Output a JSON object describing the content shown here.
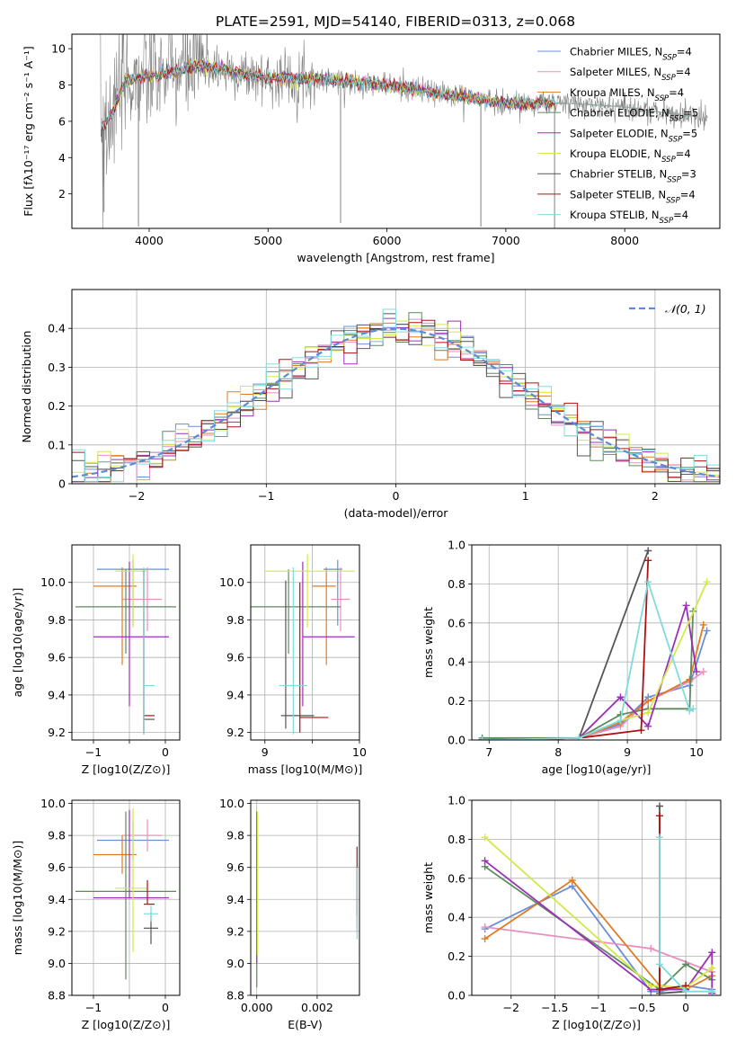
{
  "title": "PLATE=2591, MJD=54140, FIBERID=0313, z=0.068",
  "colors": {
    "Chabrier MILES": "#6a8fd8",
    "Salpeter MILES": "#e88fc0",
    "Kroupa MILES": "#e07b24",
    "Chabrier ELODIE": "#5f8a5f",
    "Salpeter ELODIE": "#9b30b8",
    "Kroupa ELODIE": "#d4e84a",
    "Chabrier STELIB": "#555555",
    "Salpeter STELIB": "#b01010",
    "Kroupa STELIB": "#80dcdc",
    "data": "#808080"
  },
  "chart_data": [
    {
      "type": "line",
      "id": "spectrum",
      "xlabel": "wavelength [Angstrom, rest frame]",
      "ylabel": "Flux [fλ10⁻¹⁷ erg cm⁻² s⁻¹ A⁻¹]",
      "xlim": [
        3350,
        8800
      ],
      "ylim": [
        0.1,
        10.8
      ],
      "xticks": [
        4000,
        5000,
        6000,
        7000,
        8000
      ],
      "yticks": [
        2,
        4,
        6,
        8,
        10
      ],
      "legend": "top-right",
      "legend_entries": [
        {
          "model": "Chabrier MILES",
          "base": "Chabrier MILES, N",
          "sub": "SSP",
          "tail": "=4"
        },
        {
          "model": "Salpeter MILES",
          "base": "Salpeter MILES, N",
          "sub": "SSP",
          "tail": "=4"
        },
        {
          "model": "Kroupa MILES",
          "base": "Kroupa MILES, N",
          "sub": "SSP",
          "tail": "=4"
        },
        {
          "model": "Chabrier ELODIE",
          "base": "Chabrier ELODIE, N",
          "sub": "SSP",
          "tail": "=5"
        },
        {
          "model": "Salpeter ELODIE",
          "base": "Salpeter ELODIE, N",
          "sub": "SSP",
          "tail": "=5"
        },
        {
          "model": "Kroupa ELODIE",
          "base": "Kroupa ELODIE, N",
          "sub": "SSP",
          "tail": "=4"
        },
        {
          "model": "Chabrier STELIB",
          "base": "Chabrier STELIB, N",
          "sub": "SSP",
          "tail": "=3"
        },
        {
          "model": "Salpeter STELIB",
          "base": "Salpeter STELIB, N",
          "sub": "SSP",
          "tail": "=4"
        },
        {
          "model": "Kroupa STELIB",
          "base": "Kroupa STELIB, N",
          "sub": "SSP",
          "tail": "=4"
        }
      ],
      "continuum": {
        "wavelength": [
          3600,
          3700,
          3800,
          3900,
          4000,
          4200,
          4400,
          4600,
          4800,
          5000,
          5500,
          6000,
          6500,
          7000,
          7500,
          8000,
          8500
        ],
        "flux": [
          5.5,
          6.6,
          8.2,
          8.4,
          8.5,
          8.7,
          9.1,
          8.9,
          8.6,
          8.4,
          8.3,
          8.0,
          7.5,
          7.0,
          7.0,
          6.8,
          6.3
        ]
      },
      "dips": [
        [
          3620,
          1.0
        ],
        [
          3910,
          0.2
        ],
        [
          5610,
          0.4
        ],
        [
          6790,
          0.2
        ],
        [
          7410,
          0.1
        ]
      ]
    },
    {
      "type": "histogram",
      "id": "residuals",
      "xlabel": "(data-model)/error",
      "ylabel": "Normed distribution",
      "xlim": [
        -2.5,
        2.5
      ],
      "ylim": [
        0,
        0.5
      ],
      "xticks": [
        -2,
        -1,
        0,
        1,
        2
      ],
      "yticks": [
        0,
        0.1,
        0.2,
        0.3,
        0.4
      ],
      "legend": "top-right",
      "reference_curve": {
        "name": "N(0, 1)",
        "mean": 0,
        "sigma": 1
      },
      "bin_width": 0.1
    },
    {
      "type": "scatter",
      "id": "age-vs-z",
      "xlabel": "Z [log10(Z/Z⊙)]",
      "ylabel": "age [log10(age/yr)]",
      "xlim": [
        -1.3,
        0.2
      ],
      "ylim": [
        9.16,
        10.2
      ],
      "xticks": [
        -1,
        -0.5,
        0
      ],
      "xtick_labels": [
        "−1",
        "",
        "0"
      ],
      "yticks": [
        9.2,
        9.4,
        9.6,
        9.8,
        10.0
      ],
      "points": [
        {
          "model": "Chabrier MILES",
          "x": -0.45,
          "y": 10.07,
          "xerr": [
            0.5,
            0.5
          ],
          "yerr": [
            0.3,
            0.05
          ]
        },
        {
          "model": "Salpeter MILES",
          "x": -0.25,
          "y": 9.91,
          "xerr": [
            0.35,
            0.2
          ],
          "yerr": [
            0.17,
            0.17
          ]
        },
        {
          "model": "Kroupa MILES",
          "x": -0.6,
          "y": 9.98,
          "xerr": [
            0.4,
            0.2
          ],
          "yerr": [
            0.42,
            0.1
          ]
        },
        {
          "model": "Chabrier ELODIE",
          "x": -0.55,
          "y": 9.87,
          "xerr": [
            0.7,
            0.7
          ],
          "yerr": [
            0.25,
            0.2
          ]
        },
        {
          "model": "Salpeter ELODIE",
          "x": -0.5,
          "y": 9.71,
          "xerr": [
            0.5,
            0.55
          ],
          "yerr": [
            0.37,
            0.4
          ]
        },
        {
          "model": "Kroupa ELODIE",
          "x": -0.45,
          "y": 10.06,
          "xerr": [
            0.25,
            0.2
          ],
          "yerr": [
            0.3,
            0.09
          ]
        },
        {
          "model": "Chabrier STELIB",
          "x": -0.3,
          "y": 9.27,
          "xerr": [
            0.0,
            0.15
          ],
          "yerr": [
            0.07,
            0.8
          ]
        },
        {
          "model": "Salpeter STELIB",
          "x": -0.3,
          "y": 9.29,
          "xerr": [
            0.0,
            0.15
          ],
          "yerr": [
            0.1,
            0.78
          ]
        },
        {
          "model": "Kroupa STELIB",
          "x": -0.3,
          "y": 9.45,
          "xerr": [
            0.0,
            0.15
          ],
          "yerr": [
            0.26,
            0.63
          ]
        }
      ]
    },
    {
      "type": "scatter",
      "id": "age-vs-mass",
      "xlabel": "mass [log10(M/M⊙)]",
      "ylabel": "",
      "xlim": [
        8.85,
        10.0
      ],
      "ylim": [
        9.16,
        10.2
      ],
      "xticks": [
        9,
        9.5,
        10
      ],
      "xtick_labels": [
        "9",
        "",
        "10"
      ],
      "yticks": [
        9.2,
        9.4,
        9.6,
        9.8,
        10.0
      ],
      "points": [
        {
          "model": "Chabrier MILES",
          "x": 9.77,
          "y": 10.07,
          "xerr": [
            0.15,
            0.05
          ],
          "yerr": [
            0.3,
            0.05
          ]
        },
        {
          "model": "Salpeter MILES",
          "x": 9.8,
          "y": 9.91,
          "xerr": [
            0.1,
            0.1
          ],
          "yerr": [
            0.17,
            0.17
          ]
        },
        {
          "model": "Kroupa MILES",
          "x": 9.65,
          "y": 9.98,
          "xerr": [
            0.15,
            0.1
          ],
          "yerr": [
            0.42,
            0.1
          ]
        },
        {
          "model": "Chabrier ELODIE",
          "x": 9.25,
          "y": 9.87,
          "xerr": [
            0.4,
            0.55
          ],
          "yerr": [
            0.25,
            0.2
          ]
        },
        {
          "model": "Salpeter ELODIE",
          "x": 9.4,
          "y": 9.71,
          "xerr": [
            0.0,
            0.55
          ],
          "yerr": [
            0.37,
            0.4
          ]
        },
        {
          "model": "Kroupa ELODIE",
          "x": 9.45,
          "y": 10.06,
          "xerr": [
            0.45,
            0.5
          ],
          "yerr": [
            0.3,
            0.09
          ]
        },
        {
          "model": "Chabrier STELIB",
          "x": 9.22,
          "y": 9.29,
          "xerr": [
            0.05,
            0.3
          ],
          "yerr": [
            0.07,
            0.72
          ]
        },
        {
          "model": "Salpeter STELIB",
          "x": 9.37,
          "y": 9.28,
          "xerr": [
            0.0,
            0.3
          ],
          "yerr": [
            0.08,
            0.72
          ]
        },
        {
          "model": "Kroupa STELIB",
          "x": 9.3,
          "y": 9.45,
          "xerr": [
            0.15,
            0.15
          ],
          "yerr": [
            0.26,
            0.63
          ]
        }
      ]
    },
    {
      "type": "line",
      "id": "weight-vs-age",
      "xlabel": "age  [log10(age/yr)]",
      "ylabel": "mass weight",
      "xlim": [
        6.75,
        10.35
      ],
      "ylim": [
        0,
        1.0
      ],
      "xticks": [
        7,
        8,
        9,
        10
      ],
      "yticks": [
        0,
        0.2,
        0.4,
        0.6,
        0.8,
        1.0
      ],
      "series": [
        {
          "model": "Chabrier MILES",
          "x": [
            6.9,
            8.3,
            8.9,
            9.3,
            9.9,
            10.15
          ],
          "y": [
            0.0,
            0.01,
            0.08,
            0.22,
            0.28,
            0.56
          ]
        },
        {
          "model": "Salpeter MILES",
          "x": [
            6.9,
            8.3,
            8.9,
            9.3,
            9.9,
            10.1
          ],
          "y": [
            0.0,
            0.01,
            0.07,
            0.2,
            0.3,
            0.35
          ]
        },
        {
          "model": "Kroupa MILES",
          "x": [
            6.9,
            8.3,
            8.9,
            9.3,
            9.9,
            10.1
          ],
          "y": [
            0.0,
            0.01,
            0.09,
            0.2,
            0.31,
            0.59
          ]
        },
        {
          "model": "Chabrier ELODIE",
          "x": [
            6.9,
            8.3,
            8.9,
            9.3,
            9.9,
            9.95
          ],
          "y": [
            0.01,
            0.01,
            0.13,
            0.16,
            0.16,
            0.66
          ]
        },
        {
          "model": "Salpeter ELODIE",
          "x": [
            6.9,
            8.3,
            8.9,
            9.3,
            9.85,
            10.0
          ],
          "y": [
            0.0,
            0.01,
            0.22,
            0.07,
            0.69,
            0.35
          ]
        },
        {
          "model": "Kroupa ELODIE",
          "x": [
            6.9,
            8.3,
            8.9,
            9.3,
            10.15
          ],
          "y": [
            0.0,
            0.01,
            0.1,
            0.14,
            0.81
          ]
        },
        {
          "model": "Chabrier STELIB",
          "x": [
            6.9,
            8.3,
            9.3
          ],
          "y": [
            0.0,
            0.01,
            0.97
          ]
        },
        {
          "model": "Salpeter STELIB",
          "x": [
            6.9,
            8.3,
            9.2,
            9.3
          ],
          "y": [
            0.0,
            0.01,
            0.05,
            0.92
          ]
        },
        {
          "model": "Kroupa STELIB",
          "x": [
            6.9,
            8.3,
            8.9,
            9.3,
            9.9,
            9.95
          ],
          "y": [
            0.0,
            0.01,
            0.1,
            0.81,
            0.15,
            0.16
          ]
        }
      ]
    },
    {
      "type": "scatter",
      "id": "mass-vs-z",
      "xlabel": "Z [log10(Z/Z⊙)]",
      "ylabel": "mass [log10(M/M⊙)]",
      "xlim": [
        -1.3,
        0.2
      ],
      "ylim": [
        8.8,
        10.02
      ],
      "xticks": [
        -1,
        -0.5,
        0
      ],
      "xtick_labels": [
        "−1",
        "",
        "0"
      ],
      "yticks": [
        8.8,
        9.0,
        9.2,
        9.4,
        9.6,
        9.8,
        10.0
      ],
      "points": [
        {
          "model": "Chabrier MILES",
          "x": -0.45,
          "y": 9.77,
          "xerr": [
            0.5,
            0.5
          ],
          "yerr": [
            0.12,
            0.12
          ]
        },
        {
          "model": "Salpeter MILES",
          "x": -0.25,
          "y": 9.8,
          "xerr": [
            0.35,
            0.2
          ],
          "yerr": [
            0.1,
            0.1
          ]
        },
        {
          "model": "Kroupa MILES",
          "x": -0.6,
          "y": 9.68,
          "xerr": [
            0.4,
            0.2
          ],
          "yerr": [
            0.12,
            0.12
          ]
        },
        {
          "model": "Chabrier ELODIE",
          "x": -0.55,
          "y": 9.45,
          "xerr": [
            0.7,
            0.7
          ],
          "yerr": [
            0.55,
            0.5
          ]
        },
        {
          "model": "Salpeter ELODIE",
          "x": -0.5,
          "y": 9.41,
          "xerr": [
            0.5,
            0.55
          ],
          "yerr": [
            0.0,
            0.55
          ]
        },
        {
          "model": "Kroupa ELODIE",
          "x": -0.45,
          "y": 9.47,
          "xerr": [
            0.25,
            0.2
          ],
          "yerr": [
            0.4,
            0.5
          ]
        },
        {
          "model": "Chabrier STELIB",
          "x": -0.2,
          "y": 9.22,
          "xerr": [
            0.1,
            0.1
          ],
          "yerr": [
            0.1,
            0.1
          ]
        },
        {
          "model": "Salpeter STELIB",
          "x": -0.25,
          "y": 9.37,
          "xerr": [
            0.05,
            0.1
          ],
          "yerr": [
            0.0,
            0.15
          ]
        },
        {
          "model": "Kroupa STELIB",
          "x": -0.2,
          "y": 9.31,
          "xerr": [
            0.1,
            0.1
          ],
          "yerr": [
            0.05,
            0.05
          ]
        }
      ]
    },
    {
      "type": "scatter",
      "id": "mass-vs-ebv",
      "xlabel": "E(B-V)",
      "ylabel": "",
      "xlim": [
        -0.0002,
        0.0034
      ],
      "ylim": [
        8.8,
        10.02
      ],
      "xticks": [
        0.0,
        0.002
      ],
      "xtick_labels": [
        "0.000",
        "0.002"
      ],
      "yticks": [
        8.8,
        9.0,
        9.2,
        9.4,
        9.6,
        9.8,
        10.0
      ],
      "points": [
        {
          "model": "Chabrier ELODIE",
          "x": 0.0,
          "y": 9.45,
          "yerr": [
            0.6,
            0.5
          ]
        },
        {
          "model": "Salpeter ELODIE",
          "x": 0.0,
          "y": 9.5,
          "yerr": [
            0.5,
            0.45
          ]
        },
        {
          "model": "Kroupa ELODIE",
          "x": 2e-05,
          "y": 9.5,
          "yerr": [
            0.45,
            0.45
          ]
        },
        {
          "model": "Chabrier MILES",
          "x": 0.00332,
          "y": 9.5,
          "yerr": [
            0.3,
            0.1
          ]
        },
        {
          "model": "Salpeter STELIB",
          "x": 0.00332,
          "y": 9.55,
          "yerr": [
            0.25,
            0.18
          ]
        },
        {
          "model": "Kroupa STELIB",
          "x": 0.00332,
          "y": 9.4,
          "yerr": [
            0.25,
            0.2
          ]
        }
      ]
    },
    {
      "type": "line",
      "id": "weight-vs-z",
      "xlabel": "Z [log10(Z/Z⊙)]",
      "ylabel": "mass weight",
      "xlim": [
        -2.45,
        0.4
      ],
      "ylim": [
        0,
        1.0
      ],
      "xticks": [
        -2.0,
        -1.5,
        -1.0,
        -0.5,
        0.0
      ],
      "yticks": [
        0,
        0.2,
        0.4,
        0.6,
        0.8,
        1.0
      ],
      "series": [
        {
          "model": "Chabrier MILES",
          "x": [
            -2.3,
            -1.3,
            -0.4,
            -0.3,
            0.0,
            0.3
          ],
          "y": [
            0.34,
            0.56,
            0.02,
            0.02,
            0.05,
            0.03
          ]
        },
        {
          "model": "Salpeter MILES",
          "x": [
            -2.3,
            -0.4,
            0.3,
            0.3
          ],
          "y": [
            0.35,
            0.24,
            0.12,
            0.01
          ]
        },
        {
          "model": "Kroupa MILES",
          "x": [
            -2.3,
            -1.3,
            -0.3,
            0.0,
            0.3
          ],
          "y": [
            0.29,
            0.59,
            0.05,
            0.03,
            0.1
          ]
        },
        {
          "model": "Chabrier ELODIE",
          "x": [
            -2.3,
            -0.3,
            0.0,
            0.3
          ],
          "y": [
            0.66,
            0.03,
            0.16,
            0.08
          ]
        },
        {
          "model": "Salpeter ELODIE",
          "x": [
            -2.3,
            -0.4,
            0.0,
            0.3,
            0.3
          ],
          "y": [
            0.69,
            0.03,
            0.03,
            0.22,
            0.01
          ]
        },
        {
          "model": "Kroupa ELODIE",
          "x": [
            -2.3,
            -0.4,
            0.0,
            0.3
          ],
          "y": [
            0.81,
            0.05,
            0.04,
            0.14
          ]
        },
        {
          "model": "Chabrier STELIB",
          "x": [
            -0.3,
            -0.3,
            0.0
          ],
          "y": [
            0.97,
            0.01,
            0.02
          ]
        },
        {
          "model": "Salpeter STELIB",
          "x": [
            -0.3,
            -0.3,
            0.0
          ],
          "y": [
            0.92,
            0.03,
            0.05
          ]
        },
        {
          "model": "Kroupa STELIB",
          "x": [
            -0.3,
            -0.3,
            0.0,
            0.3
          ],
          "y": [
            0.81,
            0.16,
            0.02,
            0.02
          ]
        }
      ]
    }
  ]
}
